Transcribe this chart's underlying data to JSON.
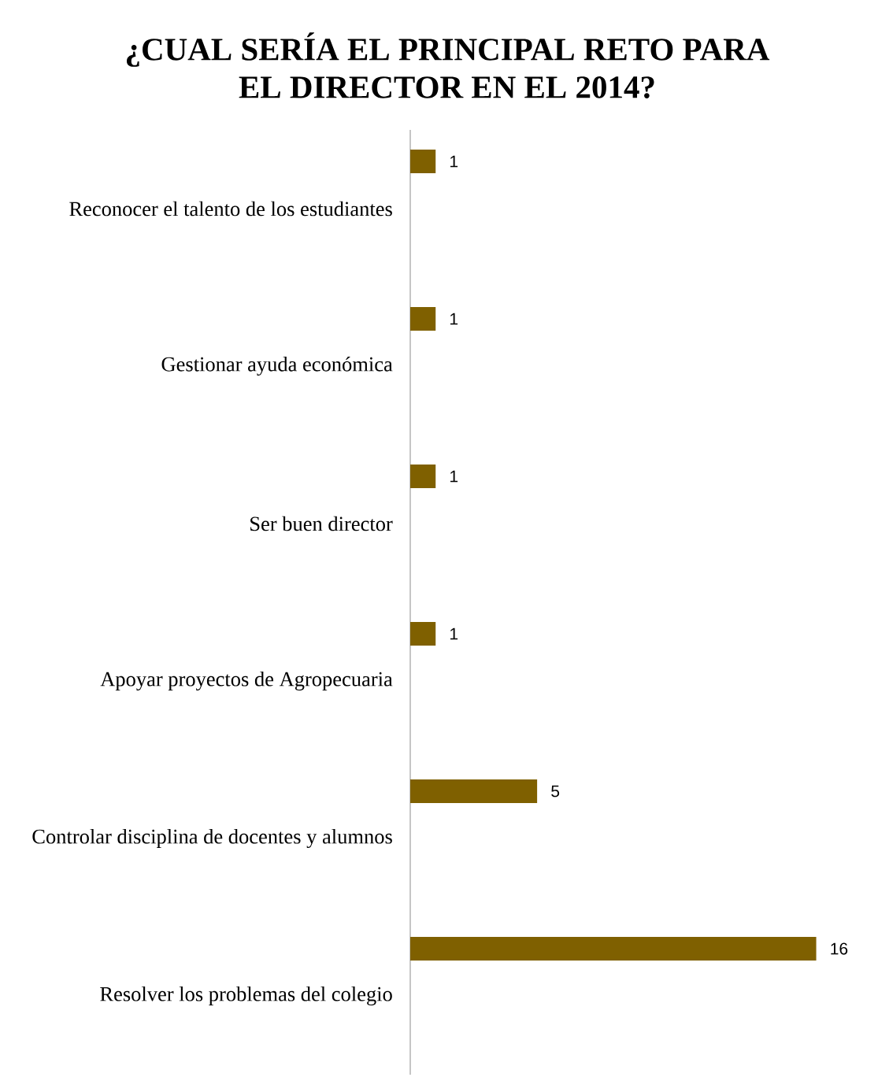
{
  "chart_data": {
    "type": "bar",
    "orientation": "horizontal",
    "title": "¿CUAL SERÍA EL PRINCIPAL RETO PARA EL DIRECTOR EN EL 2014?",
    "categories": [
      "Reconocer el talento de los estudiantes",
      "Gestionar ayuda económica",
      "Ser buen director",
      "Apoyar proyectos de Agropecuaria",
      "Controlar  disciplina de  docentes y alumnos",
      "Resolver los problemas del colegio"
    ],
    "values": [
      1,
      1,
      1,
      1,
      5,
      16
    ],
    "color": "#7f6000",
    "data_labels": true,
    "tick_labels": "y"
  }
}
